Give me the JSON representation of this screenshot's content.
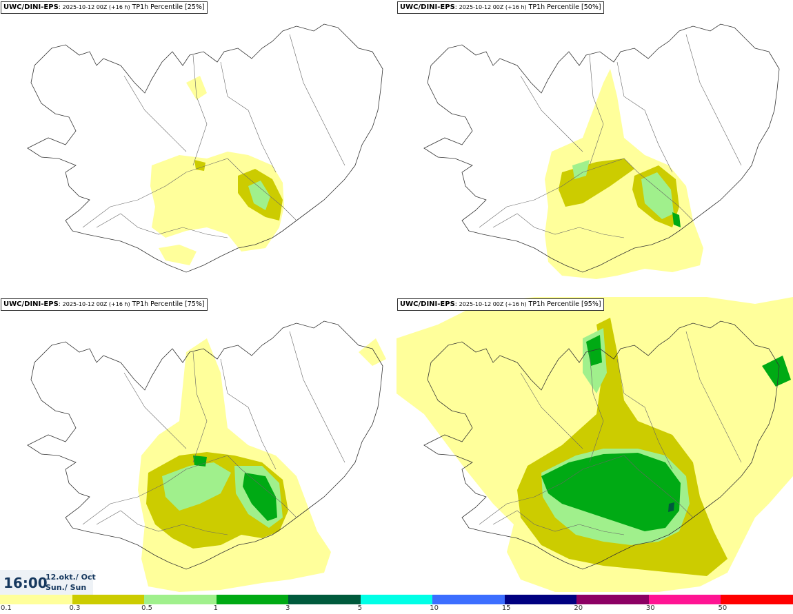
{
  "panels": [
    {
      "model": "UWC/DINI-EPS",
      "run": "2025-10-12 00Z (+16 h)",
      "param": "TP1h Percentile [25%]"
    },
    {
      "model": "UWC/DINI-EPS",
      "run": "2025-10-12 00Z (+16 h)",
      "param": "TP1h Percentile [50%]"
    },
    {
      "model": "UWC/DINI-EPS",
      "run": "2025-10-12 00Z (+16 h)",
      "param": "TP1h Percentile [75%]"
    },
    {
      "model": "UWC/DINI-EPS",
      "run": "2025-10-12 00Z (+16 h)",
      "param": "TP1h Percentile [95%]"
    }
  ],
  "valid": {
    "time": "16:00",
    "date_line1": "12.okt./ Oct",
    "date_line2": "Sun./ Sun"
  },
  "legend": {
    "colors": [
      "#ffff9b",
      "#cccc00",
      "#a0f08c",
      "#00aa14",
      "#005a3c",
      "#00ffe6",
      "#3c6eff",
      "#000080",
      "#8c0064",
      "#ff1493",
      "#ff0000"
    ],
    "ticks": [
      "0.1",
      "0.3",
      "0.5",
      "1",
      "3",
      "5",
      "10",
      "15",
      "20",
      "30",
      "50"
    ]
  }
}
